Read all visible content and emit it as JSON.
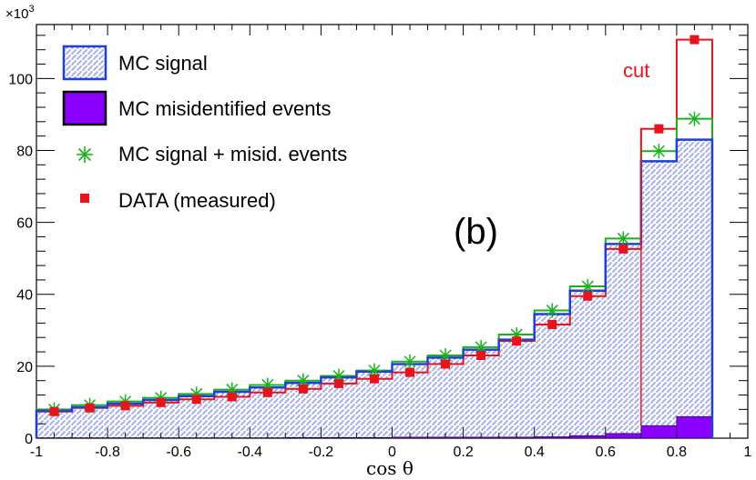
{
  "chart_data": {
    "type": "bar",
    "title": "",
    "panel_label": "(b)",
    "xlabel": "cos θ",
    "ylabel": "",
    "y_multiplier": "×10",
    "y_multiplier_exp": "3",
    "xlim": [
      -1,
      1
    ],
    "ylim": [
      0,
      115
    ],
    "x_tick_labels": [
      {
        "v": -1,
        "t": "-1"
      },
      {
        "v": -0.8,
        "t": "-0.8"
      },
      {
        "v": -0.6,
        "t": "-0.6"
      },
      {
        "v": -0.4,
        "t": "-0.4"
      },
      {
        "v": -0.2,
        "t": "-0.2"
      },
      {
        "v": 0,
        "t": "0"
      },
      {
        "v": 0.2,
        "t": "0.2"
      },
      {
        "v": 0.4,
        "t": "0.4"
      },
      {
        "v": 0.6,
        "t": "0.6"
      },
      {
        "v": 0.8,
        "t": "0.8"
      },
      {
        "v": 1,
        "t": "1"
      }
    ],
    "y_tick_labels": [
      {
        "v": 0,
        "t": "0"
      },
      {
        "v": 20,
        "t": "20"
      },
      {
        "v": 40,
        "t": "40"
      },
      {
        "v": 60,
        "t": "60"
      },
      {
        "v": 80,
        "t": "80"
      },
      {
        "v": 100,
        "t": "100"
      }
    ],
    "bin_edges": [
      -1.0,
      -0.9,
      -0.8,
      -0.7,
      -0.6,
      -0.5,
      -0.4,
      -0.3,
      -0.2,
      -0.1,
      0.0,
      0.1,
      0.2,
      0.3,
      0.4,
      0.5,
      0.6,
      0.7,
      0.8,
      0.9
    ],
    "bin_centers": [
      -0.95,
      -0.85,
      -0.75,
      -0.65,
      -0.55,
      -0.45,
      -0.35,
      -0.25,
      -0.15,
      -0.05,
      0.05,
      0.15,
      0.25,
      0.35,
      0.45,
      0.55,
      0.65,
      0.75,
      0.85
    ],
    "series": [
      {
        "name": "MC signal",
        "color": "#1f3fd6",
        "values": [
          7.6,
          8.6,
          9.6,
          10.6,
          11.7,
          12.9,
          14.1,
          15.4,
          16.9,
          18.5,
          20.6,
          22.4,
          24.6,
          27.4,
          34.5,
          41.0,
          54.0,
          77.0,
          83.0
        ]
      },
      {
        "name": "MC misidentified events",
        "color": "#8b00ff",
        "values": [
          0.1,
          0.1,
          0.1,
          0.1,
          0.1,
          0.1,
          0.1,
          0.2,
          0.2,
          0.2,
          0.3,
          0.3,
          0.3,
          0.3,
          0.4,
          0.7,
          1.3,
          3.5,
          6.0
        ]
      },
      {
        "name": "MC signal + misid. events",
        "color": "#19b11c",
        "values": [
          8.0,
          9.2,
          10.2,
          11.2,
          12.3,
          13.5,
          14.8,
          16.0,
          17.3,
          18.8,
          21.3,
          23.0,
          25.3,
          28.8,
          35.5,
          42.2,
          55.5,
          79.8,
          88.8
        ]
      },
      {
        "name": "DATA (measured)",
        "color": "#e8141b",
        "values": [
          7.4,
          8.4,
          9.0,
          9.9,
          10.8,
          11.5,
          12.7,
          13.7,
          15.2,
          16.5,
          18.3,
          20.6,
          23.0,
          27.0,
          31.6,
          39.5,
          52.6,
          86.0,
          110.8
        ]
      }
    ],
    "annotations": [
      {
        "text": "cut",
        "x": 0.7
      }
    ]
  }
}
